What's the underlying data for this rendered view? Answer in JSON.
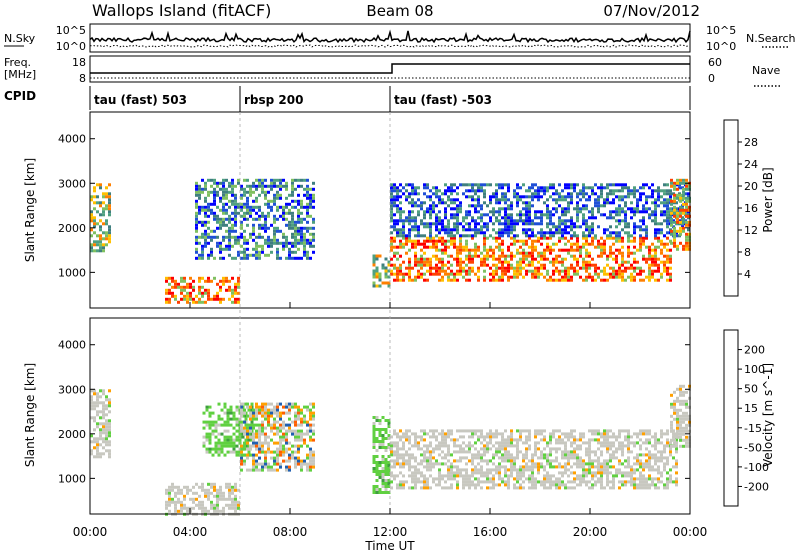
{
  "header": {
    "site": "Wallops Island (fitACF)",
    "beam": "Beam 08",
    "date": "07/Nov/2012"
  },
  "noise_panel": {
    "left_label": "N.Sky",
    "right_label": "N.Search",
    "left_ticks": [
      "10^5",
      "10^0"
    ],
    "right_ticks": [
      "10^5",
      "10^0"
    ]
  },
  "freq_panel": {
    "left_label_top": "Freq.",
    "left_label_bottom": "[MHz]",
    "right_label": "Nave",
    "left_ticks": [
      "18",
      "8"
    ],
    "right_ticks": [
      "60",
      "0"
    ]
  },
  "cpid_panel": {
    "label": "CPID",
    "programs": [
      {
        "name": "tau (fast) 503",
        "start_hour": 0
      },
      {
        "name": "rbsp 200",
        "start_hour": 6
      },
      {
        "name": "tau (fast) -503",
        "start_hour": 12
      }
    ]
  },
  "colors": {
    "power_scale": [
      "#0000ff",
      "#1f4fd6",
      "#3f7f7f",
      "#4fa080",
      "#7fc060",
      "#ffc000",
      "#ff8000",
      "#ff4000",
      "#ff0000"
    ],
    "velocity_scale": [
      "#ff0000",
      "#ff6000",
      "#ffa000",
      "#c8c8c0",
      "#c8c8c0",
      "#60d040",
      "#3f9f3f",
      "#205fb0",
      "#0000d0"
    ]
  },
  "chart_data": [
    {
      "type": "heatmap",
      "panel": "power",
      "ylabel": "Slant Range [km]",
      "yticks": [
        "1000",
        "2000",
        "3000",
        "4000"
      ],
      "ylim": [
        200,
        4600
      ],
      "xlim": [
        0,
        24
      ],
      "colorbar": {
        "label": "Power [dB]",
        "ticks": [
          "4",
          "8",
          "12",
          "16",
          "20",
          "24",
          "28"
        ]
      },
      "regions": [
        {
          "hours": [
            0.0,
            0.8
          ],
          "range_km": [
            1500,
            3000
          ],
          "level": "mid"
        },
        {
          "hours": [
            3.0,
            6.0
          ],
          "range_km": [
            300,
            900
          ],
          "level": "high"
        },
        {
          "hours": [
            4.2,
            9.0
          ],
          "range_km": [
            1300,
            3100
          ],
          "level": "low-mid"
        },
        {
          "hours": [
            11.3,
            12.0
          ],
          "range_km": [
            700,
            1400
          ],
          "level": "mid"
        },
        {
          "hours": [
            12.0,
            23.2
          ],
          "range_km": [
            800,
            1800
          ],
          "level": "high"
        },
        {
          "hours": [
            12.0,
            24.0
          ],
          "range_km": [
            1800,
            3000
          ],
          "level": "low"
        },
        {
          "hours": [
            23.2,
            24.0
          ],
          "range_km": [
            1500,
            3100
          ],
          "level": "mid-high"
        }
      ]
    },
    {
      "type": "heatmap",
      "panel": "velocity",
      "ylabel": "Slant Range [km]",
      "xlabel": "Time UT",
      "yticks": [
        "1000",
        "2000",
        "3000",
        "4000"
      ],
      "xticks": [
        "00:00",
        "04:00",
        "08:00",
        "12:00",
        "16:00",
        "20:00",
        "00:00"
      ],
      "ylim": [
        200,
        4600
      ],
      "xlim": [
        0,
        24
      ],
      "colorbar": {
        "label": "Velocity [m s^-1]",
        "ticks": [
          "200",
          "100",
          "50",
          "15",
          "-15",
          "-50",
          "-100",
          "-200"
        ]
      },
      "regions": [
        {
          "hours": [
            0.0,
            0.8
          ],
          "range_km": [
            1500,
            3000
          ],
          "velocity": "near-zero"
        },
        {
          "hours": [
            3.0,
            6.0
          ],
          "range_km": [
            200,
            900
          ],
          "velocity": "near-zero"
        },
        {
          "hours": [
            4.5,
            6.5
          ],
          "range_km": [
            1500,
            2700
          ],
          "velocity": "positive-50"
        },
        {
          "hours": [
            6.0,
            9.0
          ],
          "range_km": [
            1200,
            2700
          ],
          "velocity": "mixed"
        },
        {
          "hours": [
            11.3,
            12.0
          ],
          "range_km": [
            700,
            2400
          ],
          "velocity": "positive-50"
        },
        {
          "hours": [
            12.0,
            23.5
          ],
          "range_km": [
            800,
            2100
          ],
          "velocity": "near-zero"
        },
        {
          "hours": [
            23.2,
            24.0
          ],
          "range_km": [
            1700,
            3100
          ],
          "velocity": "near-zero"
        }
      ]
    }
  ]
}
